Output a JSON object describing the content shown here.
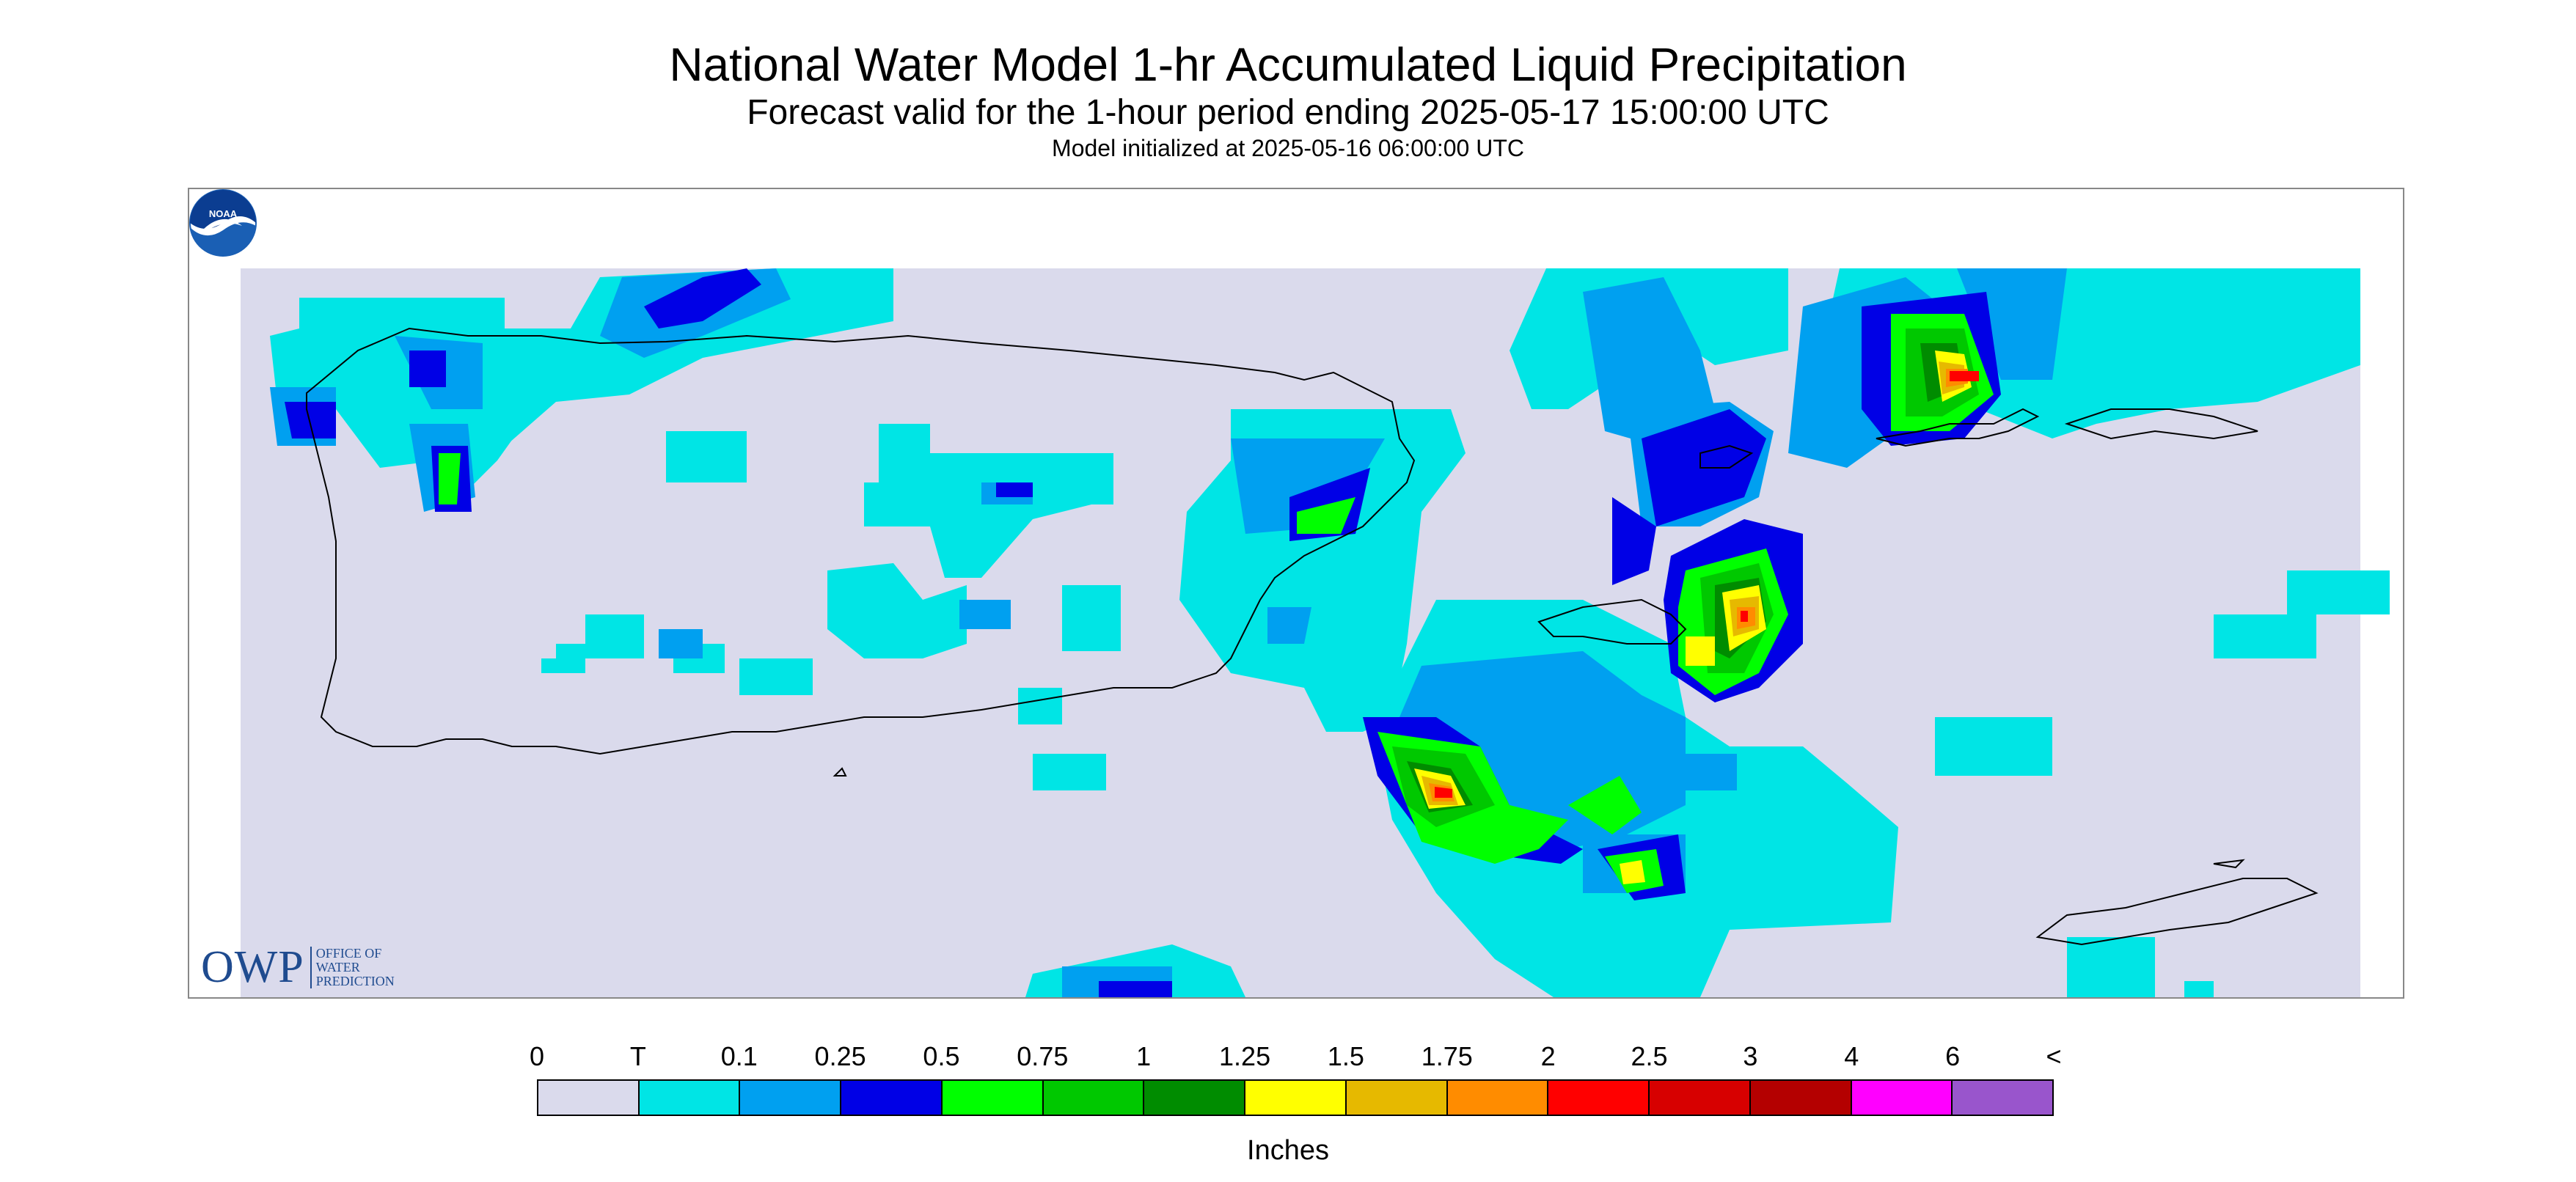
{
  "title": "National Water Model 1-hr Accumulated Liquid Precipitation",
  "subtitle": "Forecast valid for the 1-hour period ending 2025-05-17 15:00:00 UTC",
  "init_text": "Model initialized at 2025-05-16 06:00:00 UTC",
  "logo": {
    "owp_letters": "OWP",
    "owp_line1": "OFFICE OF",
    "owp_line2": "WATER",
    "owp_line3": "PREDICTION",
    "noaa_text": "NOAA"
  },
  "legend": {
    "units": "Inches",
    "labels": [
      "0",
      "T",
      "0.1",
      "0.25",
      "0.5",
      "0.75",
      "1",
      "1.25",
      "1.5",
      "1.75",
      "2",
      "2.5",
      "3",
      "4",
      "6",
      "<"
    ],
    "colors": [
      "#dadaec",
      "#00e5e5",
      "#00a0f0",
      "#0000e6",
      "#00ff00",
      "#00c800",
      "#008c00",
      "#ffff00",
      "#e6b900",
      "#ff8c00",
      "#ff0000",
      "#d70000",
      "#b40000",
      "#ff00ff",
      "#9955cc"
    ]
  },
  "map": {
    "background_color": "#dadaec",
    "outline_color": "#000000"
  }
}
